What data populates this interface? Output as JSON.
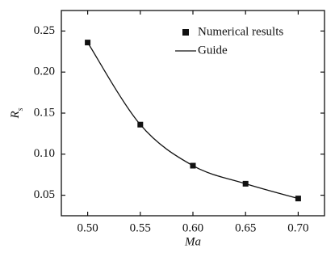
{
  "chart_data": {
    "type": "scatter",
    "xlabel": "Ma",
    "ylabel": "R_s",
    "xlim": [
      0.475,
      0.725
    ],
    "ylim": [
      0.025,
      0.275
    ],
    "x_ticks": [
      "0.50",
      "0.55",
      "0.60",
      "0.65",
      "0.70"
    ],
    "y_ticks": [
      "0.05",
      "0.10",
      "0.15",
      "0.20",
      "0.25"
    ],
    "grid": false,
    "legend_position": "top-right",
    "series": [
      {
        "name": "Numerical results",
        "kind": "markers",
        "x": [
          0.5,
          0.55,
          0.6,
          0.65,
          0.7
        ],
        "y": [
          0.236,
          0.136,
          0.086,
          0.064,
          0.046
        ]
      },
      {
        "name": "Guide",
        "kind": "line",
        "x": [
          0.5,
          0.55,
          0.6,
          0.65,
          0.7
        ],
        "y": [
          0.236,
          0.136,
          0.086,
          0.064,
          0.046
        ]
      }
    ]
  }
}
